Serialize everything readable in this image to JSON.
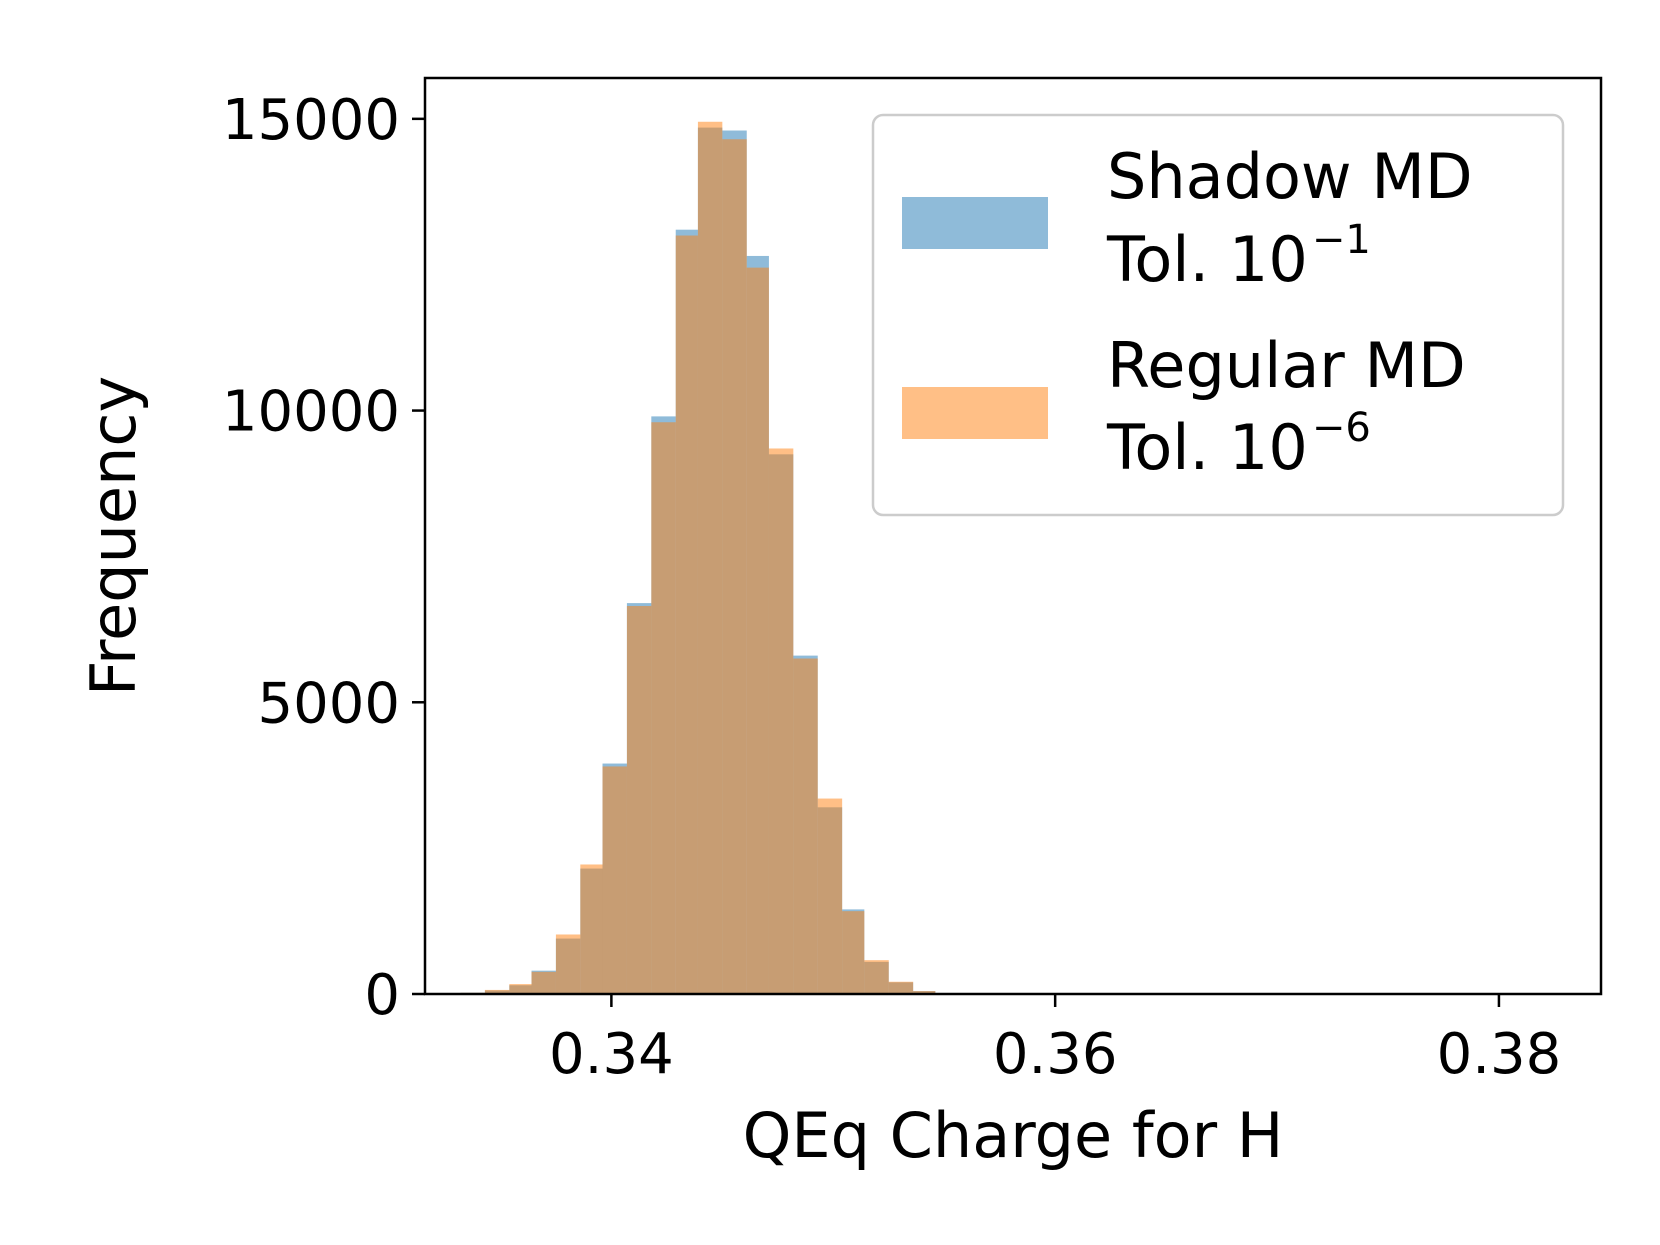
{
  "chart_data": {
    "type": "histogram",
    "xlabel": "QEq Charge for H",
    "ylabel": "Frequency",
    "xlim": [
      0.3316,
      0.3846
    ],
    "ylim": [
      0,
      15700
    ],
    "x_ticks": [
      0.34,
      0.36,
      0.38
    ],
    "x_tick_labels": [
      "0.34",
      "0.36",
      "0.38"
    ],
    "y_ticks": [
      0,
      5000,
      10000,
      15000
    ],
    "y_tick_labels": [
      "0",
      "5000",
      "10000",
      "15000"
    ],
    "bin_edges": [
      0.3332,
      0.3343,
      0.3354,
      0.3364,
      0.3375,
      0.3386,
      0.3396,
      0.3407,
      0.3418,
      0.3429,
      0.3439,
      0.345,
      0.3461,
      0.3471,
      0.3482,
      0.3493,
      0.3504,
      0.3514,
      0.3525,
      0.3536,
      0.3546
    ],
    "series": [
      {
        "name": "Shadow MD",
        "legend_line1": "Shadow MD",
        "legend_line2_base": "Tol. 10",
        "legend_line2_exp": "−1",
        "color": "#1f77b4",
        "opacity": 0.5,
        "values": [
          20,
          60,
          150,
          400,
          950,
          2150,
          3950,
          6700,
          9900,
          13100,
          14850,
          14800,
          12650,
          9250,
          5800,
          3200,
          1450,
          550,
          200,
          50
        ]
      },
      {
        "name": "Regular MD",
        "legend_line1": "Regular MD",
        "legend_line2_base": "Tol. 10",
        "legend_line2_exp": "−6",
        "color": "#ff7f0e",
        "opacity": 0.5,
        "values": [
          20,
          70,
          170,
          380,
          1020,
          2220,
          3900,
          6650,
          9800,
          13000,
          14950,
          14650,
          12450,
          9350,
          5750,
          3350,
          1420,
          580,
          210,
          50
        ]
      }
    ],
    "legend_position": "top-right",
    "grid": false
  }
}
